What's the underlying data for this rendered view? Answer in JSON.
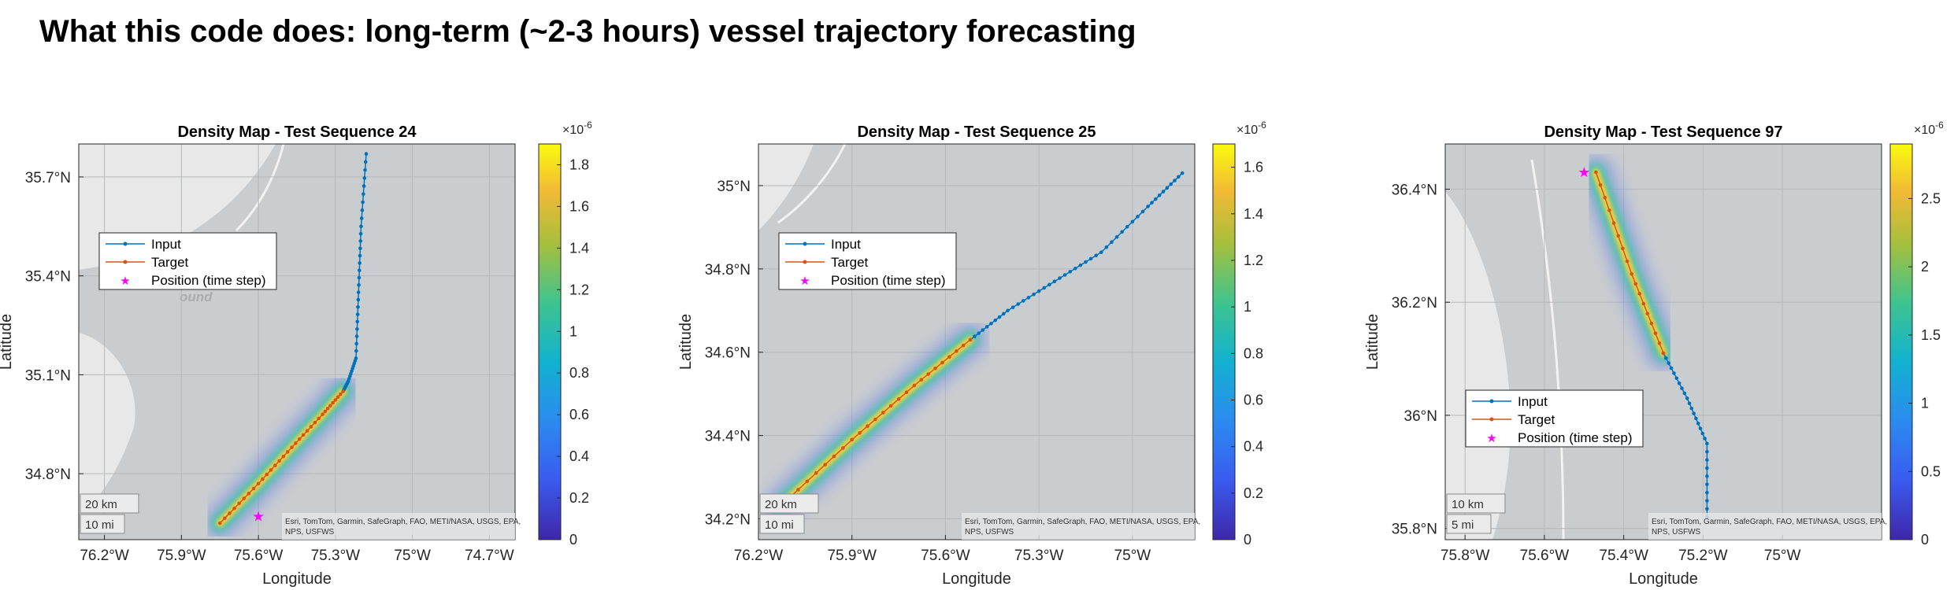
{
  "page_title": "What this code does: long-term (~2-3 hours) vessel trajectory forecasting",
  "colors": {
    "input": "#0072BD",
    "target": "#D95319",
    "position": "#FF00FF",
    "map_water": "#C9CDD0",
    "map_land": "#E8E8E8"
  },
  "chart_data": [
    {
      "type": "density-map",
      "title": "Density Map - Test Sequence 24",
      "xlabel": "Longitude",
      "ylabel": "Latitude",
      "xlim": [
        -76.3,
        -74.6
      ],
      "ylim": [
        34.6,
        35.8
      ],
      "xticks": [
        -76.2,
        -75.9,
        -75.6,
        -75.3,
        -75.0,
        -74.7
      ],
      "xtick_labels": [
        "76.2°W",
        "75.9°W",
        "75.6°W",
        "75.3°W",
        "75°W",
        "74.7°W"
      ],
      "yticks": [
        34.8,
        35.1,
        35.4,
        35.7
      ],
      "ytick_labels": [
        "34.8°N",
        "35.1°N",
        "35.4°N",
        "35.7°N"
      ],
      "grid": true,
      "legend": {
        "entries": [
          "Input",
          "Target",
          "Position (time step)"
        ],
        "placement": "upper-left"
      },
      "colorbar": {
        "range": [
          0,
          1.9
        ],
        "ticks": [
          0,
          0.2,
          0.4,
          0.6,
          0.8,
          1,
          1.2,
          1.4,
          1.6,
          1.8
        ],
        "tick_labels": [
          "0",
          "0.2",
          "0.4",
          "0.6",
          "0.8",
          "1",
          "1.2",
          "1.4",
          "1.6",
          "1.8"
        ],
        "exponent": "×10^-6"
      },
      "scalebar": {
        "km": "20 km",
        "mi": "10 mi"
      },
      "attribution": [
        "Esri, TomTom, Garmin, SafeGraph, FAO, METI/NASA, USGS, EPA,",
        "NPS, USFWS"
      ],
      "map_label": "ound",
      "input_path": [
        [
          -75.18,
          35.77
        ],
        [
          -75.2,
          35.55
        ],
        [
          -75.21,
          35.35
        ],
        [
          -75.22,
          35.15
        ],
        [
          -75.25,
          35.08
        ],
        [
          -75.27,
          35.05
        ]
      ],
      "target_path": [
        [
          -75.27,
          35.05
        ],
        [
          -75.35,
          34.98
        ],
        [
          -75.47,
          34.88
        ],
        [
          -75.6,
          34.77
        ],
        [
          -75.75,
          34.65
        ]
      ],
      "position": [
        -75.6,
        34.67
      ]
    },
    {
      "type": "density-map",
      "title": "Density Map - Test Sequence 25",
      "xlabel": "Longitude",
      "ylabel": "Latitude",
      "xlim": [
        -76.2,
        -74.8
      ],
      "ylim": [
        34.15,
        35.1
      ],
      "xticks": [
        -76.2,
        -75.9,
        -75.6,
        -75.3,
        -75.0
      ],
      "xtick_labels": [
        "76.2°W",
        "75.9°W",
        "75.6°W",
        "75.3°W",
        "75°W"
      ],
      "yticks": [
        34.2,
        34.4,
        34.6,
        34.8,
        35.0
      ],
      "ytick_labels": [
        "34.2°N",
        "34.4°N",
        "34.6°N",
        "34.8°N",
        "35°N"
      ],
      "grid": true,
      "legend": {
        "entries": [
          "Input",
          "Target",
          "Position (time step)"
        ],
        "placement": "upper-left"
      },
      "colorbar": {
        "range": [
          0,
          1.7
        ],
        "ticks": [
          0,
          0.2,
          0.4,
          0.6,
          0.8,
          1,
          1.2,
          1.4,
          1.6
        ],
        "tick_labels": [
          "0",
          "0.2",
          "0.4",
          "0.6",
          "0.8",
          "1",
          "1.2",
          "1.4",
          "1.6"
        ],
        "exponent": "×10^-6"
      },
      "scalebar": {
        "km": "20 km",
        "mi": "10 mi"
      },
      "attribution": [
        "Esri, TomTom, Garmin, SafeGraph, FAO, METI/NASA, USGS, EPA,",
        "NPS, USFWS"
      ],
      "input_path": [
        [
          -74.84,
          35.03
        ],
        [
          -74.95,
          34.95
        ],
        [
          -75.1,
          34.84
        ],
        [
          -75.25,
          34.77
        ],
        [
          -75.4,
          34.7
        ],
        [
          -75.52,
          34.63
        ]
      ],
      "target_path": [
        [
          -75.52,
          34.63
        ],
        [
          -75.7,
          34.52
        ],
        [
          -75.9,
          34.39
        ],
        [
          -76.13,
          34.23
        ]
      ],
      "position": [
        -76.14,
        34.23
      ]
    },
    {
      "type": "density-map",
      "title": "Density Map - Test Sequence 97",
      "xlabel": "Longitude",
      "ylabel": "Latitude",
      "xlim": [
        -75.85,
        -74.75
      ],
      "ylim": [
        35.78,
        36.48
      ],
      "xticks": [
        -75.8,
        -75.6,
        -75.4,
        -75.2,
        -75.0
      ],
      "xtick_labels": [
        "75.8°W",
        "75.6°W",
        "75.4°W",
        "75.2°W",
        "75°W"
      ],
      "yticks": [
        35.8,
        36.0,
        36.2,
        36.4
      ],
      "ytick_labels": [
        "35.8°N",
        "36°N",
        "36.2°N",
        "36.4°N"
      ],
      "grid": true,
      "legend": {
        "entries": [
          "Input",
          "Target",
          "Position (time step)"
        ],
        "placement": "lower-left"
      },
      "colorbar": {
        "range": [
          0,
          2.9
        ],
        "ticks": [
          0,
          0.5,
          1,
          1.5,
          2,
          2.5
        ],
        "tick_labels": [
          "0",
          "0.5",
          "1",
          "1.5",
          "2",
          "2.5"
        ],
        "exponent": "×10^-6"
      },
      "scalebar": {
        "km": "10 km",
        "mi": "5 mi"
      },
      "attribution": [
        "Esri, TomTom, Garmin, SafeGraph, FAO, METI/NASA, USGS, EPA,",
        "NPS, USFWS"
      ],
      "input_path": [
        [
          -75.19,
          35.82
        ],
        [
          -75.19,
          35.95
        ],
        [
          -75.24,
          36.03
        ],
        [
          -75.3,
          36.11
        ]
      ],
      "target_path": [
        [
          -75.3,
          36.11
        ],
        [
          -75.38,
          36.25
        ],
        [
          -75.47,
          36.43
        ]
      ],
      "position": [
        -75.5,
        36.43
      ]
    }
  ]
}
